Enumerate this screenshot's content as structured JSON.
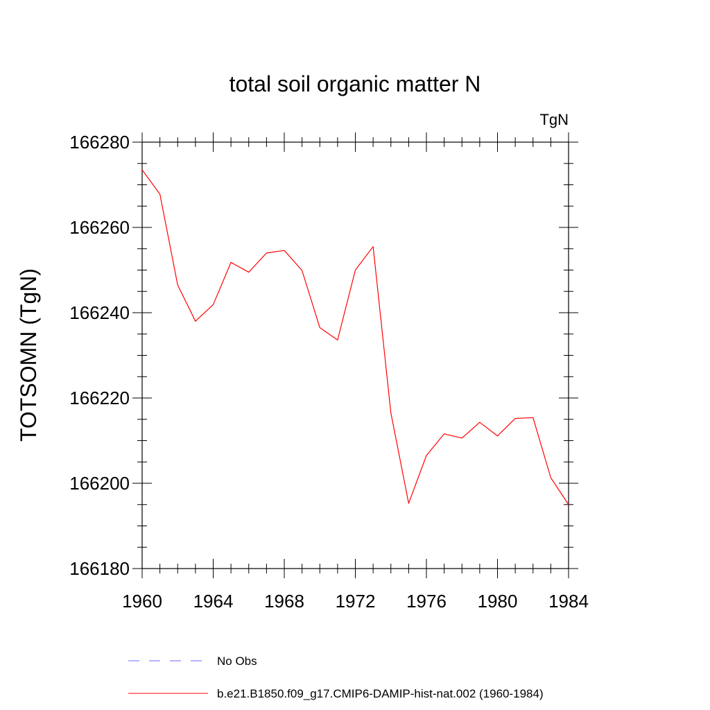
{
  "chart_data": {
    "type": "line",
    "title": "total soil organic matter N",
    "units_label": "TgN",
    "ylabel": "TOTSOMN  (TgN)",
    "xlabel": "",
    "xlim": [
      1960,
      1984
    ],
    "ylim": [
      166180,
      166280
    ],
    "xticks": [
      1960,
      1964,
      1968,
      1972,
      1976,
      1980,
      1984
    ],
    "yticks": [
      166180,
      166200,
      166220,
      166240,
      166260,
      166280
    ],
    "grid": false,
    "legend_position": "bottom",
    "x": [
      1960,
      1961,
      1962,
      1963,
      1964,
      1965,
      1966,
      1967,
      1968,
      1969,
      1970,
      1971,
      1972,
      1973,
      1974,
      1975,
      1976,
      1977,
      1978,
      1979,
      1980,
      1981,
      1982,
      1983,
      1984
    ],
    "series": [
      {
        "name": "b.e21.B1850.f09_g17.CMIP6-DAMIP-hist-nat.002 (1960-1984)",
        "color": "#ff0000",
        "style": "solid",
        "values": [
          166273.5,
          166267.8,
          166246.5,
          166238.0,
          166241.9,
          166251.8,
          166249.5,
          166254.0,
          166254.6,
          166249.9,
          166236.5,
          166233.6,
          166250.0,
          166255.5,
          166216.5,
          166195.3,
          166206.5,
          166211.6,
          166210.6,
          166214.3,
          166211.1,
          166215.2,
          166215.4,
          166201.3,
          166195.0
        ]
      }
    ],
    "legend": [
      {
        "label": "No Obs",
        "color": "#6a6aff",
        "style": "dashed"
      },
      {
        "label": "b.e21.B1850.f09_g17.CMIP6-DAMIP-hist-nat.002 (1960-1984)",
        "color": "#ff0000",
        "style": "solid"
      }
    ]
  }
}
